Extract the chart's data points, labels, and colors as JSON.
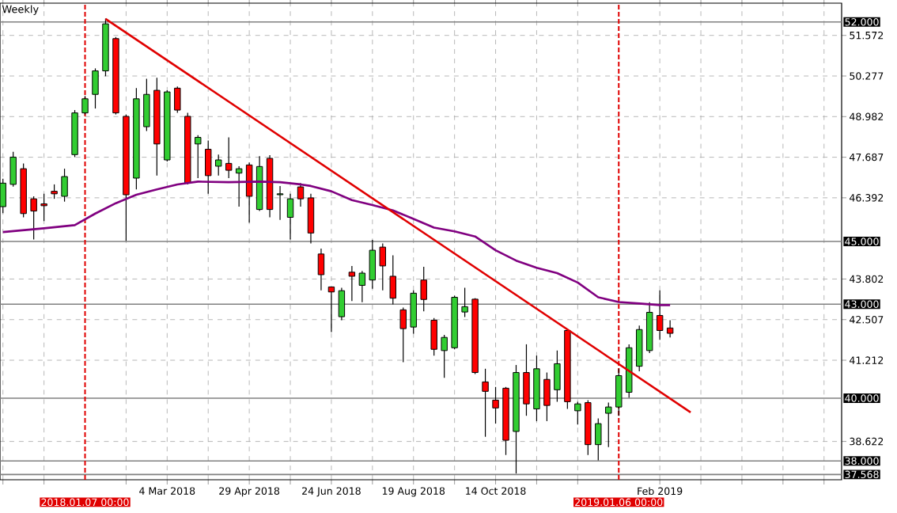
{
  "chart_data": {
    "type": "candlestick",
    "title": "Weekly",
    "x": [
      "2017-11-12",
      "2017-11-19",
      "2017-11-26",
      "2017-12-03",
      "2017-12-10",
      "2017-12-17",
      "2017-12-24",
      "2017-12-31",
      "2018-01-07",
      "2018-01-14",
      "2018-01-21",
      "2018-01-28",
      "2018-02-04",
      "2018-02-11",
      "2018-02-18",
      "2018-02-25",
      "2018-03-04",
      "2018-03-11",
      "2018-03-18",
      "2018-03-25",
      "2018-04-01",
      "2018-04-08",
      "2018-04-15",
      "2018-04-22",
      "2018-04-29",
      "2018-05-06",
      "2018-05-13",
      "2018-05-20",
      "2018-05-27",
      "2018-06-03",
      "2018-06-10",
      "2018-06-17",
      "2018-06-24",
      "2018-07-01",
      "2018-07-08",
      "2018-07-15",
      "2018-07-22",
      "2018-07-29",
      "2018-08-05",
      "2018-08-12",
      "2018-08-19",
      "2018-08-26",
      "2018-09-02",
      "2018-09-09",
      "2018-09-16",
      "2018-09-23",
      "2018-09-30",
      "2018-10-07",
      "2018-10-14",
      "2018-10-21",
      "2018-10-28",
      "2018-11-04",
      "2018-11-11",
      "2018-11-18",
      "2018-11-25",
      "2018-12-02",
      "2018-12-09",
      "2018-12-16",
      "2018-12-23",
      "2018-12-30",
      "2019-01-06",
      "2019-01-13",
      "2019-01-20",
      "2019-01-27",
      "2019-02-03",
      "2019-02-10"
    ],
    "ohlc": [
      [
        46.11,
        47.0,
        45.9,
        46.86
      ],
      [
        46.82,
        47.86,
        46.75,
        47.69
      ],
      [
        47.32,
        47.49,
        45.77,
        45.89
      ],
      [
        46.36,
        46.44,
        45.06,
        45.97
      ],
      [
        46.2,
        46.52,
        45.65,
        46.14
      ],
      [
        46.6,
        46.82,
        46.36,
        46.52
      ],
      [
        46.44,
        47.32,
        46.27,
        47.07
      ],
      [
        47.77,
        49.19,
        47.69,
        49.1
      ],
      [
        49.1,
        49.64,
        49.05,
        49.55
      ],
      [
        49.69,
        50.52,
        49.24,
        50.44
      ],
      [
        50.44,
        52.11,
        50.27,
        51.94
      ],
      [
        51.47,
        51.52,
        49.05,
        49.1
      ],
      [
        48.99,
        49.05,
        45.02,
        46.49
      ],
      [
        47.02,
        49.89,
        46.66,
        49.55
      ],
      [
        48.66,
        50.19,
        48.52,
        49.69
      ],
      [
        49.82,
        50.22,
        47.1,
        48.11
      ],
      [
        47.6,
        49.82,
        47.55,
        49.77
      ],
      [
        49.89,
        49.94,
        49.1,
        49.19
      ],
      [
        48.99,
        49.1,
        46.82,
        46.86
      ],
      [
        48.11,
        48.39,
        47.02,
        48.32
      ],
      [
        47.94,
        48.22,
        46.52,
        47.1
      ],
      [
        47.4,
        47.77,
        47.1,
        47.6
      ],
      [
        47.49,
        48.32,
        47.02,
        47.27
      ],
      [
        47.18,
        47.4,
        46.11,
        47.32
      ],
      [
        47.44,
        47.52,
        45.6,
        46.44
      ],
      [
        46.02,
        47.72,
        45.97,
        47.39
      ],
      [
        47.65,
        47.75,
        45.77,
        46.02
      ],
      [
        46.49,
        46.77,
        45.69,
        46.52
      ],
      [
        45.77,
        46.52,
        45.06,
        46.36
      ],
      [
        46.74,
        46.86,
        46.11,
        46.36
      ],
      [
        46.39,
        46.52,
        44.94,
        45.27
      ],
      [
        44.6,
        44.77,
        43.44,
        43.94
      ],
      [
        43.55,
        43.56,
        42.11,
        43.39
      ],
      [
        42.6,
        43.52,
        42.49,
        43.43
      ],
      [
        44.02,
        44.22,
        43.1,
        43.89
      ],
      [
        43.6,
        44.06,
        43.06,
        43.99
      ],
      [
        43.77,
        45.05,
        43.49,
        44.72
      ],
      [
        44.82,
        44.94,
        43.44,
        44.22
      ],
      [
        43.89,
        44.56,
        42.99,
        43.19
      ],
      [
        42.82,
        42.89,
        41.15,
        42.22
      ],
      [
        42.27,
        43.44,
        42.06,
        43.35
      ],
      [
        43.77,
        44.19,
        42.77,
        43.15
      ],
      [
        42.49,
        42.56,
        41.36,
        41.56
      ],
      [
        41.52,
        42.02,
        40.65,
        41.94
      ],
      [
        41.61,
        43.27,
        41.56,
        43.22
      ],
      [
        42.75,
        43.52,
        42.59,
        42.92
      ],
      [
        43.16,
        43.19,
        40.77,
        40.82
      ],
      [
        40.52,
        40.94,
        38.77,
        40.22
      ],
      [
        39.94,
        40.36,
        39.19,
        39.69
      ],
      [
        40.32,
        40.36,
        38.19,
        38.66
      ],
      [
        38.94,
        41.06,
        37.6,
        40.82
      ],
      [
        40.82,
        41.72,
        39.44,
        39.82
      ],
      [
        39.66,
        41.36,
        39.27,
        40.94
      ],
      [
        40.6,
        40.82,
        39.27,
        39.77
      ],
      [
        40.27,
        41.52,
        39.89,
        41.1
      ],
      [
        42.16,
        42.19,
        39.66,
        39.89
      ],
      [
        39.6,
        39.89,
        39.16,
        39.82
      ],
      [
        39.86,
        39.94,
        38.19,
        38.52
      ],
      [
        38.52,
        39.36,
        38.02,
        39.19
      ],
      [
        39.52,
        39.86,
        38.44,
        39.72
      ],
      [
        39.72,
        40.94,
        39.44,
        40.72
      ],
      [
        40.19,
        41.72,
        40.02,
        41.61
      ],
      [
        41.02,
        42.32,
        40.86,
        42.19
      ],
      [
        41.52,
        43.06,
        41.44,
        42.74
      ],
      [
        42.64,
        43.44,
        41.86,
        42.16
      ],
      [
        42.24,
        42.49,
        41.94,
        42.07
      ]
    ],
    "colors": [
      "#32cd32",
      "#32cd32",
      "#ff0000",
      "#ff0000",
      "#ff0000",
      "#ff0000",
      "#32cd32",
      "#32cd32",
      "#32cd32",
      "#32cd32",
      "#32cd32",
      "#ff0000",
      "#ff0000",
      "#32cd32",
      "#32cd32",
      "#ff0000",
      "#32cd32",
      "#ff0000",
      "#ff0000",
      "#32cd32",
      "#ff0000",
      "#32cd32",
      "#ff0000",
      "#32cd32",
      "#ff0000",
      "#32cd32",
      "#ff0000",
      "#32cd32",
      "#32cd32",
      "#ff0000",
      "#ff0000",
      "#ff0000",
      "#ff0000",
      "#32cd32",
      "#ff0000",
      "#32cd32",
      "#32cd32",
      "#ff0000",
      "#ff0000",
      "#ff0000",
      "#32cd32",
      "#ff0000",
      "#ff0000",
      "#32cd32",
      "#32cd32",
      "#32cd32",
      "#ff0000",
      "#ff0000",
      "#ff0000",
      "#ff0000",
      "#32cd32",
      "#ff0000",
      "#32cd32",
      "#ff0000",
      "#32cd32",
      "#ff0000",
      "#32cd32",
      "#ff0000",
      "#32cd32",
      "#32cd32",
      "#32cd32",
      "#32cd32",
      "#32cd32",
      "#32cd32",
      "#ff0000",
      "#ff0000"
    ],
    "series": [
      {
        "type": "line",
        "color": "#800080",
        "x": [
          "2017-11-12",
          "2017-12-10",
          "2017-12-31",
          "2018-01-14",
          "2018-01-28",
          "2018-02-11",
          "2018-02-25",
          "2018-03-11",
          "2018-03-25",
          "2018-04-15",
          "2018-05-06",
          "2018-05-20",
          "2018-06-03",
          "2018-06-10",
          "2018-06-24",
          "2018-07-08",
          "2018-07-22",
          "2018-08-05",
          "2018-08-19",
          "2018-09-02",
          "2018-09-16",
          "2018-09-30",
          "2018-10-14",
          "2018-10-28",
          "2018-11-11",
          "2018-11-25",
          "2018-12-09",
          "2018-12-23",
          "2019-01-06",
          "2019-01-20",
          "2019-02-03",
          "2019-02-10"
        ],
        "values": [
          45.3,
          45.42,
          45.52,
          45.89,
          46.22,
          46.49,
          46.66,
          46.82,
          46.91,
          46.89,
          46.91,
          46.89,
          46.82,
          46.77,
          46.6,
          46.32,
          46.16,
          45.99,
          45.72,
          45.44,
          45.32,
          45.16,
          44.72,
          44.39,
          44.16,
          43.99,
          43.69,
          43.22,
          43.07,
          43.02,
          42.97,
          42.97
        ]
      },
      {
        "type": "line",
        "color": "#e00000",
        "x": [
          "2018-01-21",
          "2019-02-24"
        ],
        "values": [
          52.1,
          39.55
        ]
      }
    ],
    "xlim": [
      "2017-11-10",
      "2019-06-07"
    ],
    "ylim": [
      37.4,
      52.6
    ],
    "xticks": [
      {
        "value": "2017-11-12",
        "label": null
      },
      {
        "value": "2017-12-10",
        "label": null
      },
      {
        "value": "2018-02-04",
        "label": null
      },
      {
        "value": "2018-03-04",
        "label": "4 Mar 2018"
      },
      {
        "value": "2018-04-01",
        "label": null
      },
      {
        "value": "2018-04-29",
        "label": "29 Apr 2018"
      },
      {
        "value": "2018-05-27",
        "label": null
      },
      {
        "value": "2018-06-24",
        "label": "24 Jun 2018"
      },
      {
        "value": "2018-07-22",
        "label": null
      },
      {
        "value": "2018-08-19",
        "label": "19 Aug 2018"
      },
      {
        "value": "2018-09-16",
        "label": null
      },
      {
        "value": "2018-10-14",
        "label": "14 Oct 2018"
      },
      {
        "value": "2018-11-11",
        "label": null
      },
      {
        "value": "2018-12-09",
        "label": null
      },
      {
        "value": "2019-02-03",
        "label": "Feb 2019"
      },
      {
        "value": "2019-03-03",
        "label": null
      },
      {
        "value": "2019-03-31",
        "label": null
      },
      {
        "value": "2019-04-28",
        "label": null
      },
      {
        "value": "2019-05-26",
        "label": null
      }
    ],
    "yticks": [
      51.572,
      50.277,
      48.982,
      47.687,
      46.392,
      43.802,
      42.507,
      41.212,
      38.622
    ],
    "grid": true,
    "ref_lines": [
      {
        "axis": "y",
        "value": 52,
        "label": "52.000",
        "color": "#808080"
      },
      {
        "axis": "y",
        "value": 45,
        "label": "45.000",
        "color": "#808080"
      },
      {
        "axis": "y",
        "value": 43,
        "label": "43.000",
        "color": "#808080"
      },
      {
        "axis": "y",
        "value": 40,
        "label": "40.000",
        "color": "#808080"
      },
      {
        "axis": "y",
        "value": 38,
        "label": "38.000",
        "color": "#808080"
      },
      {
        "axis": "y",
        "value": 37.568,
        "label": "37.568",
        "color": "#808080"
      },
      {
        "axis": "x",
        "value": "2018-01-07",
        "label": "2018.01.07 00:00",
        "color": "#e00000",
        "line_style": "dashed"
      },
      {
        "axis": "x",
        "value": "2019-01-06",
        "label": "2019.01.06 00:00",
        "color": "#e00000",
        "line_style": "dashed"
      }
    ]
  }
}
